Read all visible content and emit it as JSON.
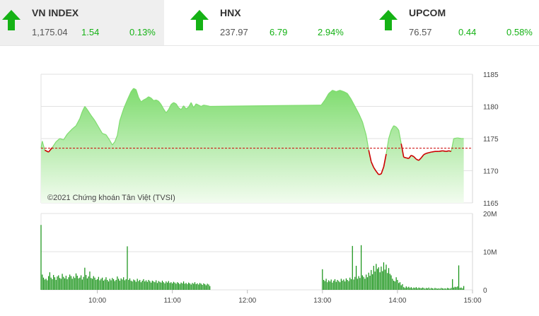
{
  "tickers": [
    {
      "name": "VN INDEX",
      "price": "1,175.04",
      "change": "1.54",
      "percent": "0.13%",
      "direction": "up",
      "icon": "up-arrow-icon",
      "active": true
    },
    {
      "name": "HNX",
      "price": "237.97",
      "change": "6.79",
      "percent": "2.94%",
      "direction": "up",
      "icon": "up-arrow-icon",
      "active": false
    },
    {
      "name": "UPCOM",
      "price": "76.57",
      "change": "0.44",
      "percent": "0.58%",
      "direction": "up",
      "icon": "up-arrow-icon",
      "active": false
    }
  ],
  "colors": {
    "up": "#15b215",
    "down": "#cc0000",
    "area_top": "#7fdc6f",
    "area_bottom": "#f2fcef",
    "volume": "#0f8f0f",
    "reference": "#cc0000"
  },
  "chart_data": {
    "type": "area",
    "watermark": "©2021 Chứng khoán Tân Việt (TVSI)",
    "reference_value": 1173.5,
    "price_axis": {
      "ticks": [
        1165,
        1170,
        1175,
        1180,
        1185
      ],
      "min": 1165,
      "max": 1185
    },
    "volume_axis": {
      "ticks": [
        0,
        10,
        20
      ],
      "labels": [
        "0",
        "10M",
        "20M"
      ],
      "min": 0,
      "max": 20
    },
    "time_axis": {
      "ticks": [
        "10:00",
        "11:00",
        "12:00",
        "13:00",
        "14:00",
        "15:00"
      ],
      "min": "09:15",
      "max": "15:00"
    },
    "price_series": [
      [
        "09:15",
        1173.5
      ],
      [
        "09:16",
        1174.6
      ],
      [
        "09:18",
        1173.2
      ],
      [
        "09:21",
        1172.9
      ],
      [
        "09:24",
        1173.6
      ],
      [
        "09:27",
        1174.5
      ],
      [
        "09:30",
        1175.0
      ],
      [
        "09:33",
        1174.8
      ],
      [
        "09:36",
        1175.7
      ],
      [
        "09:40",
        1176.5
      ],
      [
        "09:43",
        1177.0
      ],
      [
        "09:46",
        1178.1
      ],
      [
        "09:48",
        1179.2
      ],
      [
        "09:50",
        1180.0
      ],
      [
        "09:52",
        1179.5
      ],
      [
        "09:55",
        1178.6
      ],
      [
        "09:58",
        1177.8
      ],
      [
        "10:01",
        1176.8
      ],
      [
        "10:04",
        1175.8
      ],
      [
        "10:07",
        1175.6
      ],
      [
        "10:10",
        1174.7
      ],
      [
        "10:12",
        1174.0
      ],
      [
        "10:14",
        1174.5
      ],
      [
        "10:16",
        1175.5
      ],
      [
        "10:18",
        1177.8
      ],
      [
        "10:21",
        1179.6
      ],
      [
        "10:24",
        1181.0
      ],
      [
        "10:27",
        1182.3
      ],
      [
        "10:29",
        1182.8
      ],
      [
        "10:31",
        1182.6
      ],
      [
        "10:33",
        1181.4
      ],
      [
        "10:35",
        1180.7
      ],
      [
        "10:37",
        1181.0
      ],
      [
        "10:39",
        1181.2
      ],
      [
        "10:41",
        1181.5
      ],
      [
        "10:43",
        1181.3
      ],
      [
        "10:45",
        1180.9
      ],
      [
        "10:47",
        1181.0
      ],
      [
        "10:49",
        1180.8
      ],
      [
        "10:51",
        1180.3
      ],
      [
        "10:53",
        1179.6
      ],
      [
        "10:55",
        1179.0
      ],
      [
        "10:57",
        1179.5
      ],
      [
        "10:59",
        1180.3
      ],
      [
        "11:01",
        1180.6
      ],
      [
        "11:03",
        1180.4
      ],
      [
        "11:05",
        1179.8
      ],
      [
        "11:07",
        1179.5
      ],
      [
        "11:09",
        1180.1
      ],
      [
        "11:11",
        1179.6
      ],
      [
        "11:13",
        1179.9
      ],
      [
        "11:15",
        1180.6
      ],
      [
        "11:17",
        1179.8
      ],
      [
        "11:19",
        1180.4
      ],
      [
        "11:21",
        1180.2
      ],
      [
        "11:23",
        1180.0
      ],
      [
        "11:25",
        1180.2
      ],
      [
        "11:28",
        1180.1
      ],
      [
        "11:30",
        1180.0
      ],
      [
        "12:59",
        1180.2
      ],
      [
        "13:02",
        1181.0
      ],
      [
        "13:05",
        1182.0
      ],
      [
        "13:08",
        1182.5
      ],
      [
        "13:11",
        1182.3
      ],
      [
        "13:14",
        1182.5
      ],
      [
        "13:17",
        1182.3
      ],
      [
        "13:20",
        1182.0
      ],
      [
        "13:23",
        1181.1
      ],
      [
        "13:26",
        1180.0
      ],
      [
        "13:29",
        1178.9
      ],
      [
        "13:32",
        1177.6
      ],
      [
        "13:35",
        1175.5
      ],
      [
        "13:37",
        1173.2
      ],
      [
        "13:39",
        1171.4
      ],
      [
        "13:41",
        1170.5
      ],
      [
        "13:43",
        1169.9
      ],
      [
        "13:45",
        1169.4
      ],
      [
        "13:47",
        1169.5
      ],
      [
        "13:49",
        1170.6
      ],
      [
        "13:51",
        1172.6
      ],
      [
        "13:53",
        1175.0
      ],
      [
        "13:55",
        1176.3
      ],
      [
        "13:57",
        1177.0
      ],
      [
        "13:59",
        1176.8
      ],
      [
        "14:01",
        1176.3
      ],
      [
        "14:03",
        1174.2
      ],
      [
        "14:05",
        1172.1
      ],
      [
        "14:07",
        1172.0
      ],
      [
        "14:09",
        1171.9
      ],
      [
        "14:11",
        1172.4
      ],
      [
        "14:13",
        1172.2
      ],
      [
        "14:15",
        1171.8
      ],
      [
        "14:17",
        1171.6
      ],
      [
        "14:19",
        1172.0
      ],
      [
        "14:21",
        1172.5
      ],
      [
        "14:23",
        1172.7
      ],
      [
        "14:25",
        1172.8
      ],
      [
        "14:27",
        1172.9
      ],
      [
        "14:30",
        1173.0
      ],
      [
        "14:33",
        1173.0
      ],
      [
        "14:36",
        1173.1
      ],
      [
        "14:39",
        1173.0
      ],
      [
        "14:41",
        1173.1
      ],
      [
        "14:43",
        1173.0
      ],
      [
        "14:45",
        1175.0
      ],
      [
        "14:48",
        1175.1
      ],
      [
        "14:51",
        1175.0
      ],
      [
        "14:53",
        1175.0
      ]
    ],
    "volume_series": [
      [
        "09:15",
        17.0
      ],
      [
        "09:16",
        4.0
      ],
      [
        "09:17",
        3.2
      ],
      [
        "09:18",
        2.7
      ],
      [
        "09:19",
        2.9
      ],
      [
        "09:20",
        2.5
      ],
      [
        "09:21",
        3.6
      ],
      [
        "09:22",
        4.6
      ],
      [
        "09:23",
        3.2
      ],
      [
        "09:24",
        2.8
      ],
      [
        "09:25",
        3.9
      ],
      [
        "09:26",
        3.3
      ],
      [
        "09:27",
        2.6
      ],
      [
        "09:28",
        3.5
      ],
      [
        "09:29",
        3.8
      ],
      [
        "09:30",
        3.1
      ],
      [
        "09:31",
        2.9
      ],
      [
        "09:32",
        4.2
      ],
      [
        "09:33",
        3.4
      ],
      [
        "09:34",
        3.0
      ],
      [
        "09:35",
        3.7
      ],
      [
        "09:36",
        2.8
      ],
      [
        "09:37",
        3.3
      ],
      [
        "09:38",
        4.0
      ],
      [
        "09:39",
        3.6
      ],
      [
        "09:40",
        2.9
      ],
      [
        "09:41",
        3.5
      ],
      [
        "09:42",
        3.1
      ],
      [
        "09:43",
        4.3
      ],
      [
        "09:44",
        3.7
      ],
      [
        "09:45",
        3.0
      ],
      [
        "09:46",
        3.2
      ],
      [
        "09:47",
        3.8
      ],
      [
        "09:48",
        2.7
      ],
      [
        "09:49",
        3.4
      ],
      [
        "09:50",
        5.8
      ],
      [
        "09:51",
        3.9
      ],
      [
        "09:52",
        3.0
      ],
      [
        "09:53",
        3.5
      ],
      [
        "09:54",
        4.8
      ],
      [
        "09:55",
        3.1
      ],
      [
        "09:56",
        2.9
      ],
      [
        "09:57",
        3.6
      ],
      [
        "09:58",
        3.2
      ],
      [
        "09:59",
        2.6
      ],
      [
        "10:00",
        2.8
      ],
      [
        "10:01",
        3.4
      ],
      [
        "10:02",
        2.5
      ],
      [
        "10:03",
        2.9
      ],
      [
        "10:04",
        3.2
      ],
      [
        "10:05",
        2.4
      ],
      [
        "10:06",
        2.7
      ],
      [
        "10:07",
        3.3
      ],
      [
        "10:08",
        2.6
      ],
      [
        "10:09",
        2.2
      ],
      [
        "10:10",
        2.9
      ],
      [
        "10:11",
        2.5
      ],
      [
        "10:12",
        3.1
      ],
      [
        "10:13",
        2.8
      ],
      [
        "10:14",
        2.3
      ],
      [
        "10:15",
        2.6
      ],
      [
        "10:16",
        3.5
      ],
      [
        "10:17",
        2.9
      ],
      [
        "10:18",
        2.4
      ],
      [
        "10:19",
        3.0
      ],
      [
        "10:20",
        2.7
      ],
      [
        "10:21",
        3.3
      ],
      [
        "10:22",
        2.5
      ],
      [
        "10:23",
        2.8
      ],
      [
        "10:24",
        11.4
      ],
      [
        "10:25",
        2.6
      ],
      [
        "10:26",
        3.0
      ],
      [
        "10:27",
        2.4
      ],
      [
        "10:28",
        2.2
      ],
      [
        "10:29",
        2.7
      ],
      [
        "10:30",
        2.5
      ],
      [
        "10:31",
        2.1
      ],
      [
        "10:32",
        2.9
      ],
      [
        "10:33",
        2.3
      ],
      [
        "10:34",
        2.6
      ],
      [
        "10:35",
        2.0
      ],
      [
        "10:36",
        2.4
      ],
      [
        "10:37",
        2.8
      ],
      [
        "10:38",
        2.2
      ],
      [
        "10:39",
        2.5
      ],
      [
        "10:40",
        2.1
      ],
      [
        "10:41",
        2.6
      ],
      [
        "10:42",
        2.3
      ],
      [
        "10:43",
        1.9
      ],
      [
        "10:44",
        2.4
      ],
      [
        "10:45",
        2.2
      ],
      [
        "10:46",
        2.0
      ],
      [
        "10:47",
        2.5
      ],
      [
        "10:48",
        1.8
      ],
      [
        "10:49",
        2.3
      ],
      [
        "10:50",
        2.1
      ],
      [
        "10:51",
        1.9
      ],
      [
        "10:52",
        2.4
      ],
      [
        "10:53",
        2.0
      ],
      [
        "10:54",
        1.7
      ],
      [
        "10:55",
        2.2
      ],
      [
        "10:56",
        1.9
      ],
      [
        "10:57",
        2.3
      ],
      [
        "10:58",
        1.8
      ],
      [
        "10:59",
        2.0
      ],
      [
        "11:00",
        1.7
      ],
      [
        "11:01",
        2.1
      ],
      [
        "11:02",
        1.9
      ],
      [
        "11:03",
        1.6
      ],
      [
        "11:04",
        2.0
      ],
      [
        "11:05",
        1.8
      ],
      [
        "11:06",
        1.5
      ],
      [
        "11:07",
        1.9
      ],
      [
        "11:08",
        1.7
      ],
      [
        "11:09",
        2.2
      ],
      [
        "11:10",
        1.6
      ],
      [
        "11:11",
        1.8
      ],
      [
        "11:12",
        1.5
      ],
      [
        "11:13",
        1.9
      ],
      [
        "11:14",
        1.7
      ],
      [
        "11:15",
        1.4
      ],
      [
        "11:16",
        1.8
      ],
      [
        "11:17",
        1.6
      ],
      [
        "11:18",
        2.0
      ],
      [
        "11:19",
        1.5
      ],
      [
        "11:20",
        1.7
      ],
      [
        "11:21",
        1.4
      ],
      [
        "11:22",
        1.8
      ],
      [
        "11:23",
        1.6
      ],
      [
        "11:24",
        1.3
      ],
      [
        "11:25",
        1.7
      ],
      [
        "11:26",
        1.5
      ],
      [
        "11:27",
        1.2
      ],
      [
        "11:28",
        1.6
      ],
      [
        "11:29",
        1.4
      ],
      [
        "11:30",
        1.0
      ],
      [
        "13:00",
        5.4
      ],
      [
        "13:01",
        2.6
      ],
      [
        "13:02",
        2.3
      ],
      [
        "13:03",
        2.9
      ],
      [
        "13:04",
        2.0
      ],
      [
        "13:05",
        2.5
      ],
      [
        "13:06",
        2.2
      ],
      [
        "13:07",
        2.7
      ],
      [
        "13:08",
        1.9
      ],
      [
        "13:09",
        2.4
      ],
      [
        "13:10",
        2.8
      ],
      [
        "13:11",
        2.1
      ],
      [
        "13:12",
        2.6
      ],
      [
        "13:13",
        2.3
      ],
      [
        "13:14",
        2.0
      ],
      [
        "13:15",
        2.9
      ],
      [
        "13:16",
        2.4
      ],
      [
        "13:17",
        2.7
      ],
      [
        "13:18",
        2.2
      ],
      [
        "13:19",
        3.0
      ],
      [
        "13:20",
        2.6
      ],
      [
        "13:21",
        2.3
      ],
      [
        "13:22",
        3.2
      ],
      [
        "13:23",
        2.8
      ],
      [
        "13:24",
        11.5
      ],
      [
        "13:25",
        2.7
      ],
      [
        "13:26",
        3.4
      ],
      [
        "13:27",
        6.3
      ],
      [
        "13:28",
        2.9
      ],
      [
        "13:29",
        3.6
      ],
      [
        "13:30",
        3.1
      ],
      [
        "13:31",
        11.7
      ],
      [
        "13:32",
        3.8
      ],
      [
        "13:33",
        3.4
      ],
      [
        "13:34",
        2.9
      ],
      [
        "13:35",
        4.0
      ],
      [
        "13:36",
        3.3
      ],
      [
        "13:37",
        4.5
      ],
      [
        "13:38",
        3.7
      ],
      [
        "13:39",
        5.2
      ],
      [
        "13:40",
        4.1
      ],
      [
        "13:41",
        6.3
      ],
      [
        "13:42",
        4.8
      ],
      [
        "13:43",
        6.8
      ],
      [
        "13:44",
        5.5
      ],
      [
        "13:45",
        5.9
      ],
      [
        "13:46",
        4.6
      ],
      [
        "13:47",
        6.1
      ],
      [
        "13:48",
        4.9
      ],
      [
        "13:49",
        7.2
      ],
      [
        "13:50",
        5.3
      ],
      [
        "13:51",
        6.6
      ],
      [
        "13:52",
        4.4
      ],
      [
        "13:53",
        5.7
      ],
      [
        "13:54",
        4.2
      ],
      [
        "13:55",
        3.8
      ],
      [
        "13:56",
        2.9
      ],
      [
        "13:57",
        2.4
      ],
      [
        "13:58",
        2.2
      ],
      [
        "13:59",
        3.3
      ],
      [
        "14:00",
        2.6
      ],
      [
        "14:01",
        1.8
      ],
      [
        "14:02",
        2.0
      ],
      [
        "14:03",
        1.2
      ],
      [
        "14:04",
        1.5
      ],
      [
        "14:05",
        0.7
      ],
      [
        "14:06",
        0.5
      ],
      [
        "14:07",
        0.9
      ],
      [
        "14:08",
        0.6
      ],
      [
        "14:09",
        0.8
      ],
      [
        "14:10",
        0.5
      ],
      [
        "14:11",
        0.7
      ],
      [
        "14:12",
        0.4
      ],
      [
        "14:13",
        0.6
      ],
      [
        "14:14",
        0.5
      ],
      [
        "14:15",
        0.7
      ],
      [
        "14:16",
        0.4
      ],
      [
        "14:17",
        0.6
      ],
      [
        "14:18",
        0.5
      ],
      [
        "14:19",
        0.4
      ],
      [
        "14:20",
        0.6
      ],
      [
        "14:21",
        0.5
      ],
      [
        "14:22",
        0.3
      ],
      [
        "14:23",
        0.5
      ],
      [
        "14:24",
        0.4
      ],
      [
        "14:25",
        0.6
      ],
      [
        "14:26",
        0.3
      ],
      [
        "14:27",
        0.5
      ],
      [
        "14:28",
        0.4
      ],
      [
        "14:29",
        0.3
      ],
      [
        "14:30",
        0.5
      ],
      [
        "14:31",
        0.4
      ],
      [
        "14:32",
        0.3
      ],
      [
        "14:33",
        0.4
      ],
      [
        "14:34",
        0.3
      ],
      [
        "14:35",
        0.5
      ],
      [
        "14:36",
        0.4
      ],
      [
        "14:37",
        0.3
      ],
      [
        "14:38",
        0.4
      ],
      [
        "14:39",
        0.3
      ],
      [
        "14:40",
        0.5
      ],
      [
        "14:41",
        0.4
      ],
      [
        "14:42",
        0.3
      ],
      [
        "14:43",
        0.5
      ],
      [
        "14:44",
        2.8
      ],
      [
        "14:45",
        0.6
      ],
      [
        "14:46",
        0.8
      ],
      [
        "14:47",
        0.7
      ],
      [
        "14:48",
        0.9
      ],
      [
        "14:49",
        6.4
      ],
      [
        "14:50",
        0.5
      ],
      [
        "14:51",
        0.6
      ],
      [
        "14:52",
        0.4
      ],
      [
        "14:53",
        1.0
      ]
    ]
  }
}
